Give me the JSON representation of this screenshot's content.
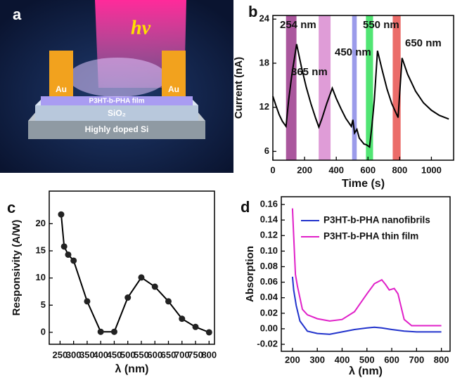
{
  "diagram": {
    "panel": "a",
    "hv": "hv",
    "electrodes": [
      "Au",
      "Au"
    ],
    "film": "P3HT-b-PHA film",
    "oxide": "SiO₂",
    "substrate": "Highly doped Si"
  },
  "chart_data": [
    {
      "type": "line",
      "panel": "b",
      "xlabel": "Time (s)",
      "ylabel": "Current (nA)",
      "color": "#000000",
      "xlim": [
        0,
        1140
      ],
      "ylim": [
        4.8,
        24.5
      ],
      "xticks": [
        0,
        200,
        400,
        600,
        800,
        1000
      ],
      "yticks": [
        6,
        12,
        18,
        24
      ],
      "x": [
        0,
        20,
        40,
        60,
        83,
        100,
        120,
        150,
        180,
        210,
        240,
        270,
        290,
        310,
        340,
        375,
        400,
        430,
        460,
        495,
        505,
        515,
        530,
        545,
        560,
        575,
        590,
        610,
        625,
        640,
        660,
        690,
        720,
        750,
        790,
        800,
        815,
        850,
        900,
        950,
        1000,
        1050,
        1110
      ],
      "values": [
        13.5,
        12.2,
        11.0,
        10.1,
        9.4,
        13,
        16.5,
        20.6,
        17.5,
        14.8,
        12.5,
        10.5,
        9.3,
        10.5,
        12.5,
        14.6,
        13.2,
        11.8,
        10.5,
        9.4,
        10.3,
        8.5,
        9.0,
        7.8,
        7.4,
        7.0,
        6.9,
        6.6,
        9.5,
        13,
        19.7,
        17,
        14.5,
        12.5,
        10.6,
        14,
        18.7,
        16.5,
        14.2,
        12.6,
        11.6,
        10.9,
        10.4
      ],
      "bands": [
        {
          "label": "254 nm",
          "x": [
            83,
            149
          ],
          "color": "#9b3a8c"
        },
        {
          "label": "365 nm",
          "x": [
            289,
            364
          ],
          "color": "#d98bd0"
        },
        {
          "label": "450 nm",
          "x": [
            500,
            529
          ],
          "color": "#8a8ae6"
        },
        {
          "label": "550 nm",
          "x": [
            587,
            632
          ],
          "color": "#33e05a"
        },
        {
          "label": "650 nm",
          "x": [
            756,
            806
          ],
          "color": "#e8524f"
        }
      ]
    },
    {
      "type": "line",
      "panel": "c",
      "xlabel": "λ (nm)",
      "ylabel": "Responsivity (A/W)",
      "color": "#000000",
      "markers": true,
      "xlim": [
        210,
        820
      ],
      "ylim": [
        -2.2,
        26
      ],
      "xticks": [
        250,
        300,
        350,
        400,
        450,
        500,
        550,
        600,
        650,
        700,
        750,
        800
      ],
      "yticks": [
        0,
        5,
        10,
        15,
        20
      ],
      "x": [
        254,
        265,
        280,
        300,
        350,
        400,
        450,
        500,
        550,
        600,
        650,
        700,
        750,
        800
      ],
      "values": [
        21.7,
        15.8,
        14.3,
        13.2,
        5.7,
        0.1,
        0.1,
        6.4,
        10.1,
        8.4,
        5.7,
        2.5,
        1.0,
        0.0
      ]
    },
    {
      "type": "line",
      "panel": "d",
      "xlabel": "λ (nm)",
      "ylabel": "Absorption",
      "legend": "upper right",
      "xlim": [
        155,
        835
      ],
      "ylim": [
        -0.029,
        0.17
      ],
      "xticks": [
        200,
        300,
        400,
        500,
        600,
        700,
        800
      ],
      "yticks": [
        -0.02,
        {
          "value": 0,
          "label": "0.00"
        },
        0.02,
        0.04,
        0.06,
        0.08,
        {
          "value": 0.1,
          "label": "0.10"
        },
        0.12,
        0.14,
        0.16
      ],
      "series": [
        {
          "name": "P3HT-b-PHA nanofibrils",
          "color": "#2233cc",
          "x": [
            200,
            205,
            215,
            230,
            260,
            300,
            350,
            400,
            450,
            500,
            530,
            560,
            600,
            650,
            700,
            800
          ],
          "values": [
            0.067,
            0.05,
            0.03,
            0.01,
            -0.003,
            -0.006,
            -0.007,
            -0.004,
            -0.001,
            0.001,
            0.002,
            0.001,
            -0.001,
            -0.003,
            -0.004,
            -0.004
          ]
        },
        {
          "name": "P3HT-b-PHA thin film",
          "color": "#e020c8",
          "x": [
            200,
            205,
            212,
            220,
            240,
            260,
            300,
            350,
            400,
            450,
            500,
            530,
            560,
            575,
            590,
            610,
            625,
            650,
            680,
            800
          ],
          "values": [
            0.155,
            0.12,
            0.07,
            0.055,
            0.025,
            0.018,
            0.013,
            0.01,
            0.012,
            0.022,
            0.045,
            0.058,
            0.063,
            0.057,
            0.05,
            0.052,
            0.045,
            0.012,
            0.004,
            0.004
          ]
        }
      ]
    }
  ]
}
